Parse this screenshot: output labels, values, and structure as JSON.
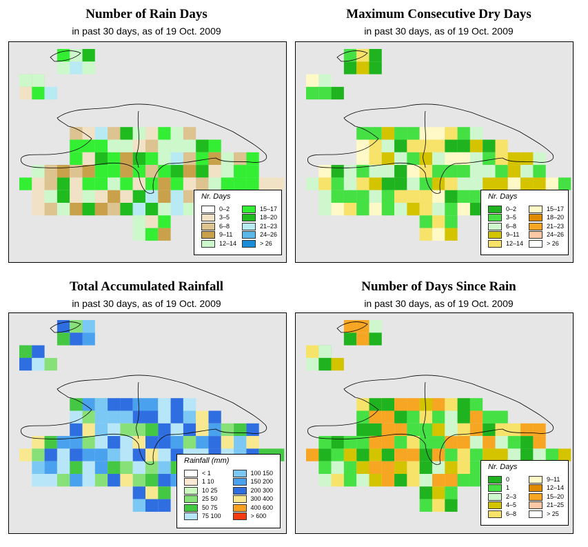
{
  "panels": [
    {
      "id": "rain-days",
      "title": "Number of Rain Days",
      "subtitle": "in past 30 days, as of  19 Oct. 2009",
      "legend_title": "Nr. Days",
      "legend": [
        {
          "label": "0–2",
          "color": "#ffffff"
        },
        {
          "label": "3–5",
          "color": "#f1e2c6"
        },
        {
          "label": "6–8",
          "color": "#dcc38f"
        },
        {
          "label": "9–11",
          "color": "#c9a14b"
        },
        {
          "label": "12–14",
          "color": "#ccf8cc"
        },
        {
          "label": "15–17",
          "color": "#33ee33"
        },
        {
          "label": "18–20",
          "color": "#1fbb1f"
        },
        {
          "label": "21–23",
          "color": "#b8eaf4"
        },
        {
          "label": "24–26",
          "color": "#5cb8e8"
        },
        {
          "label": "> 26",
          "color": "#1a8cd8"
        }
      ]
    },
    {
      "id": "max-dry-days",
      "title": "Maximum Consecutive Dry Days",
      "subtitle": "in past 30 days, as of  19 Oct. 2009",
      "legend_title": "Nr. Days",
      "legend": [
        {
          "label": "0–2",
          "color": "#1fb41f"
        },
        {
          "label": "3–5",
          "color": "#44e044"
        },
        {
          "label": "6–8",
          "color": "#cef7ce"
        },
        {
          "label": "9–11",
          "color": "#d4c400"
        },
        {
          "label": "12–14",
          "color": "#f7e36a"
        },
        {
          "label": "15–17",
          "color": "#fff9c8"
        },
        {
          "label": "18–20",
          "color": "#e08a00"
        },
        {
          "label": "21–23",
          "color": "#f7a623"
        },
        {
          "label": "24–26",
          "color": "#fbc9a6"
        },
        {
          "label": "> 26",
          "color": "#ffffff"
        }
      ]
    },
    {
      "id": "total-rainfall",
      "title": "Total Accumulated Rainfall",
      "subtitle": "in past 30 days, as of  19 Oct. 2009",
      "legend_title": "Rainfall (mm)",
      "legend": [
        {
          "label": "< 1",
          "color": "#ffffff"
        },
        {
          "label": "1    10",
          "color": "#fbe9d4"
        },
        {
          "label": "10   25",
          "color": "#cdf7c0"
        },
        {
          "label": "25   50",
          "color": "#88e078"
        },
        {
          "label": "50   75",
          "color": "#44c844"
        },
        {
          "label": "75  100",
          "color": "#b6e6f8"
        },
        {
          "label": "100  150",
          "color": "#7cc8f4"
        },
        {
          "label": "150  200",
          "color": "#4aa2ee"
        },
        {
          "label": "200  300",
          "color": "#2f6ee0"
        },
        {
          "label": "300  400",
          "color": "#f8e890"
        },
        {
          "label": "400  600",
          "color": "#f9a020"
        },
        {
          "label": "> 600",
          "color": "#f53a10"
        }
      ]
    },
    {
      "id": "days-since-rain",
      "title": "Number of Days Since Rain",
      "subtitle": "in past 30 days, as of  19 Oct. 2009",
      "legend_title": "Nr. Days",
      "legend": [
        {
          "label": "0",
          "color": "#1fb41f"
        },
        {
          "label": "1",
          "color": "#44e044"
        },
        {
          "label": "2–3",
          "color": "#cef7ce"
        },
        {
          "label": "4–5",
          "color": "#d4c400"
        },
        {
          "label": "6–8",
          "color": "#f7e36a"
        },
        {
          "label": "9–11",
          "color": "#fff9c8"
        },
        {
          "label": "12–14",
          "color": "#e08a00"
        },
        {
          "label": "15–20",
          "color": "#f7a623"
        },
        {
          "label": "21–25",
          "color": "#fbc9a6"
        },
        {
          "label": "> 25",
          "color": "#ffffff"
        }
      ]
    }
  ]
}
